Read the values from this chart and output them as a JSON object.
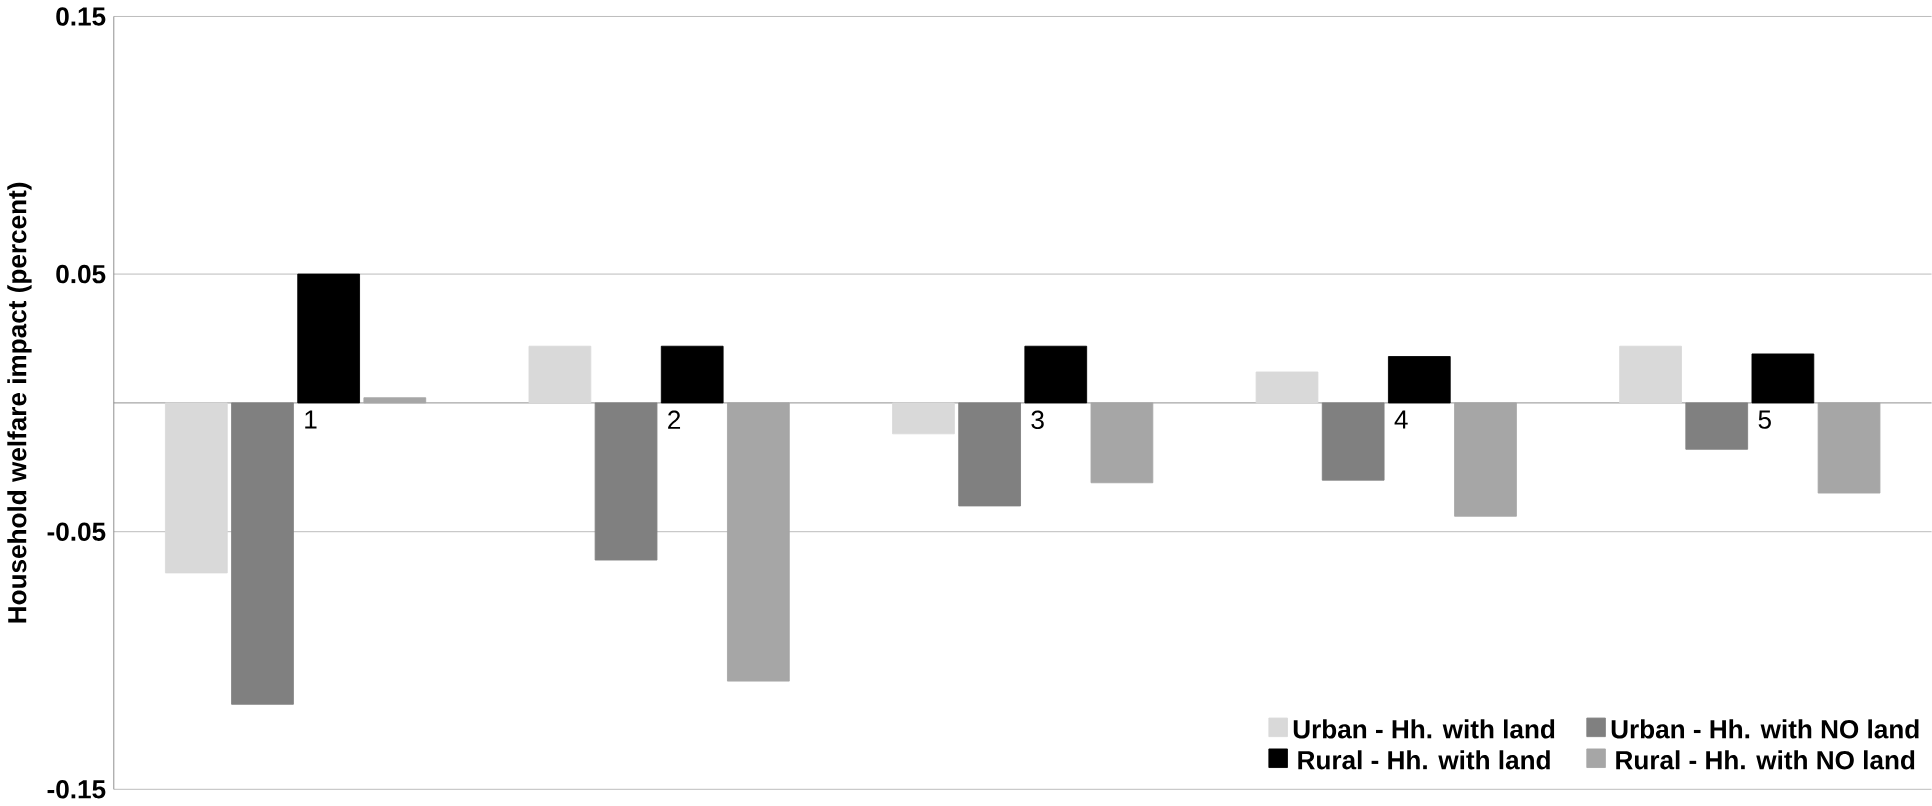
{
  "chart_data": {
    "type": "bar",
    "ylabel": "Household welfare impact (percent)",
    "categories": [
      "1",
      "2",
      "3",
      "4",
      "5"
    ],
    "series": [
      {
        "name": "Urban - Hh. with land",
        "color": "#d9d9d9",
        "values": [
          -0.066,
          0.022,
          -0.012,
          0.012,
          0.022
        ]
      },
      {
        "name": "Urban - Hh. with NO land",
        "color": "#808080",
        "values": [
          -0.117,
          -0.061,
          -0.04,
          -0.03,
          -0.018
        ]
      },
      {
        "name": "Rural - Hh. with land",
        "color": "#000000",
        "values": [
          0.05,
          0.022,
          0.022,
          0.018,
          0.019
        ]
      },
      {
        "name": "Rural - Hh. with NO land",
        "color": "#a6a6a6",
        "values": [
          0.002,
          -0.108,
          -0.031,
          -0.044,
          -0.035
        ]
      }
    ],
    "ylim": [
      -0.15,
      0.15
    ],
    "yticks": [
      -0.15,
      -0.05,
      0.05,
      0.15
    ],
    "grid": "y",
    "legend": "bottom right"
  }
}
